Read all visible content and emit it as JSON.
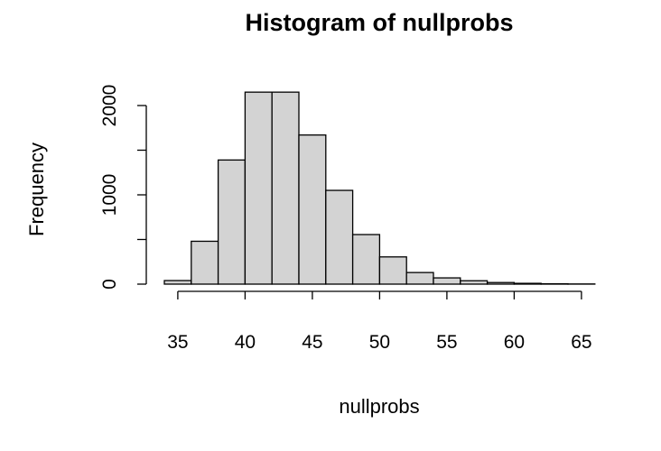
{
  "chart_data": {
    "type": "bar",
    "title": "Histogram of nullprobs",
    "xlabel": "nullprobs",
    "ylabel": "Frequency",
    "bin_edges": [
      34,
      36,
      38,
      40,
      42,
      44,
      46,
      48,
      50,
      52,
      54,
      56,
      58,
      60,
      62,
      64,
      66
    ],
    "values": [
      40,
      480,
      1390,
      2150,
      2150,
      1670,
      1050,
      555,
      305,
      130,
      70,
      38,
      18,
      9,
      4,
      2
    ],
    "xlim": [
      34,
      66
    ],
    "ylim": [
      0,
      2200
    ],
    "x_ticks": [
      35,
      40,
      45,
      50,
      55,
      60,
      65
    ],
    "y_ticks": [
      0,
      500,
      1000,
      1500,
      2000
    ],
    "y_tick_labels": [
      "0",
      "",
      "1000",
      "",
      "2000"
    ],
    "bar_color": "#d3d3d3",
    "grid": false
  }
}
